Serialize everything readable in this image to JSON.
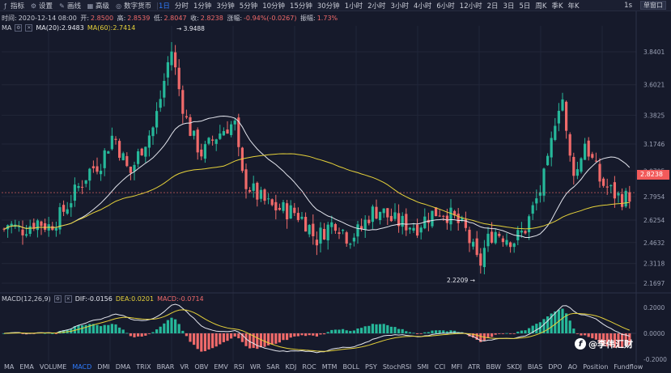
{
  "toolbar": {
    "indicators_label": "指标",
    "settings_label": "设置",
    "draw_label": "画线",
    "advanced_label": "高级",
    "exchange_label": "数字货币",
    "intervals": [
      "1日",
      "分时",
      "1分钟",
      "3分钟",
      "5分钟",
      "10分钟",
      "15分钟",
      "30分钟",
      "1小时",
      "2小时",
      "3小时",
      "4小时",
      "6小时",
      "12小时",
      "2日",
      "3日",
      "5日",
      "周K",
      "季K",
      "年K"
    ],
    "active_interval": "1日",
    "right_label": "1s",
    "mode_button": "单窗口"
  },
  "info": {
    "time_label": "时间:",
    "time": "2020-12-14 08:00",
    "open_label": "开:",
    "open": "2.8500",
    "high_label": "高:",
    "high": "2.8539",
    "low_label": "低:",
    "low": "2.8047",
    "close_label": "收:",
    "close": "2.8238",
    "change_label": "涨幅:",
    "change": "-0.94%(-0.0267)",
    "amp_label": "振幅:",
    "amp": "1.73%"
  },
  "ma": {
    "label": "MA",
    "ma20": "MA(20):2.9483",
    "ma60": "MA(60):2.7414"
  },
  "macd": {
    "label": "MACD(12,26,9)",
    "dif": "DIF:-0.0156",
    "dea": "DEA:0.0201",
    "macd": "MACD:-0.0714"
  },
  "annotations": {
    "high_mark": "3.9488",
    "low_mark": "2.2209"
  },
  "current_price": "2.8238",
  "colors": {
    "background": "#161a2b",
    "up": "#26b89a",
    "down": "#f06a6a",
    "ma20": "#e4e6ee",
    "ma60": "#e6d23a",
    "accent": "#2f7cff"
  },
  "chart_data": {
    "type": "candlestick",
    "y_ticks": [
      "3.8401",
      "3.6021",
      "3.3825",
      "3.1746",
      "2.9795",
      "2.7954",
      "2.6254",
      "2.4632",
      "2.3118",
      "2.1697"
    ],
    "y_range": [
      2.1,
      3.98
    ],
    "macd_ticks": [
      "0.2000",
      "0.0000",
      "-0.2000"
    ],
    "macd_range": [
      -0.22,
      0.22
    ]
  },
  "bottom_indicators": [
    "MA",
    "EMA",
    "VOLUME",
    "MACD",
    "DMI",
    "DMA",
    "TRIX",
    "BRAR",
    "VR",
    "OBV",
    "EMV",
    "RSI",
    "WR",
    "SAR",
    "KDJ",
    "ROC",
    "MTM",
    "BOLL",
    "PSY",
    "StochRSI",
    "SMI",
    "CCI",
    "MFI",
    "ATR",
    "BBW",
    "SKDJ",
    "BIAS",
    "DPO",
    "AO",
    "Position",
    "Fundflow"
  ],
  "active_indicator": "MACD",
  "watermark": "@李伟汇财"
}
